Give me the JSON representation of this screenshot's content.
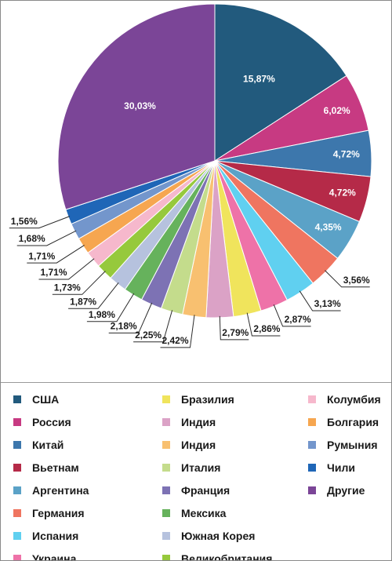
{
  "chart_data": {
    "type": "pie",
    "title": "",
    "slices": [
      {
        "label": "США",
        "value": 15.87,
        "value_label": "15,87%",
        "color": "#225a7d"
      },
      {
        "label": "Россия",
        "value": 6.02,
        "value_label": "6,02%",
        "color": "#c73a82"
      },
      {
        "label": "Китай",
        "value": 4.72,
        "value_label": "4,72%",
        "color": "#3d77ac"
      },
      {
        "label": "Вьетнам",
        "value": 4.72,
        "value_label": "4,72%",
        "color": "#b52a48"
      },
      {
        "label": "Аргентина",
        "value": 4.35,
        "value_label": "4,35%",
        "color": "#5ba2c7"
      },
      {
        "label": "Германия",
        "value": 3.56,
        "value_label": "3,56%",
        "color": "#ef7560"
      },
      {
        "label": "Испания",
        "value": 3.13,
        "value_label": "3,13%",
        "color": "#60d0f0"
      },
      {
        "label": "Украина",
        "value": 2.87,
        "value_label": "2,87%",
        "color": "#ee72a8"
      },
      {
        "label": "Бразилия",
        "value": 2.86,
        "value_label": "2,86%",
        "color": "#f0e45c"
      },
      {
        "label": "Индия",
        "value": 2.79,
        "value_label": "2,79%",
        "color": "#dba2c6"
      },
      {
        "label": "Индия",
        "value": 2.42,
        "value_label": "2,42%",
        "color": "#f8c070"
      },
      {
        "label": "Италия",
        "value": 2.25,
        "value_label": "2,25%",
        "color": "#c4dc8c"
      },
      {
        "label": "Франция",
        "value": 2.18,
        "value_label": "2,18%",
        "color": "#7d72b4"
      },
      {
        "label": "Мексика",
        "value": 1.98,
        "value_label": "1,98%",
        "color": "#66b25c"
      },
      {
        "label": "Южная Корея",
        "value": 1.87,
        "value_label": "1,87%",
        "color": "#b6c2de"
      },
      {
        "label": "Великобритания",
        "value": 1.73,
        "value_label": "1,73%",
        "color": "#96c93c"
      },
      {
        "label": "Колумбия",
        "value": 1.71,
        "value_label": "1,71%",
        "color": "#f6b8cc"
      },
      {
        "label": "Болгария",
        "value": 1.71,
        "value_label": "1,71%",
        "color": "#f6a650"
      },
      {
        "label": "Румыния",
        "value": 1.68,
        "value_label": "1,68%",
        "color": "#7396cc"
      },
      {
        "label": "Чили",
        "value": 1.56,
        "value_label": "1,56%",
        "color": "#1f66b7"
      },
      {
        "label": "Другие",
        "value": 30.03,
        "value_label": "30,03%",
        "color": "#7b4597"
      }
    ],
    "legend_placement": "bottom"
  },
  "legend": [
    {
      "label": "США",
      "color": "#225a7d"
    },
    {
      "label": "Россия",
      "color": "#c73a82"
    },
    {
      "label": "Китай",
      "color": "#3d77ac"
    },
    {
      "label": "Вьетнам",
      "color": "#b52a48"
    },
    {
      "label": "Аргентина",
      "color": "#5ba2c7"
    },
    {
      "label": "Германия",
      "color": "#ef7560"
    },
    {
      "label": "Испания",
      "color": "#60d0f0"
    },
    {
      "label": "Украина",
      "color": "#ee72a8"
    },
    {
      "label": "Бразилия",
      "color": "#f0e45c"
    },
    {
      "label": "Индия",
      "color": "#dba2c6"
    },
    {
      "label": "Индия",
      "color": "#f8c070"
    },
    {
      "label": "Италия",
      "color": "#c4dc8c"
    },
    {
      "label": "Франция",
      "color": "#7d72b4"
    },
    {
      "label": "Мексика",
      "color": "#66b25c"
    },
    {
      "label": "Южная Корея",
      "color": "#b6c2de"
    },
    {
      "label": "Великобритания",
      "color": "#96c93c"
    },
    {
      "label": "Колумбия",
      "color": "#f6b8cc"
    },
    {
      "label": "Болгария",
      "color": "#f6a650"
    },
    {
      "label": "Румыния",
      "color": "#7396cc"
    },
    {
      "label": "Чили",
      "color": "#1f66b7"
    },
    {
      "label": "Другие",
      "color": "#7b4597"
    }
  ]
}
